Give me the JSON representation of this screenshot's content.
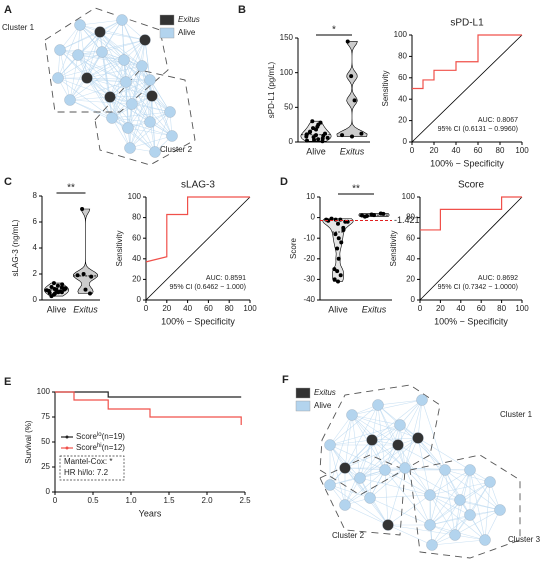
{
  "panel_labels": [
    "A",
    "B",
    "C",
    "D",
    "E",
    "F"
  ],
  "diagrams": [
    {
      "legend": [
        {
          "label": "Exitus",
          "color": "#333333"
        },
        {
          "label": "Alive",
          "color": "#b3d4ee"
        }
      ],
      "clusters": [
        "Cluster 1",
        "Cluster 2"
      ]
    },
    {
      "legend": [
        {
          "label": "Exitus",
          "color": "#333333"
        },
        {
          "label": "Alive",
          "color": "#b3d4ee"
        }
      ],
      "clusters": [
        "Cluster 1",
        "Cluster 2",
        "Cluster 3"
      ]
    }
  ],
  "chart_data": [
    {
      "type": "violin",
      "ylabel": "sPD-L1 (pg/mL)",
      "categories": [
        "Alive",
        "Exitus"
      ],
      "significance": "*",
      "ylim": [
        0,
        150
      ],
      "yticks": [
        0,
        50,
        100,
        150
      ],
      "groups": [
        [
          2,
          3,
          5,
          8,
          10,
          12,
          15,
          4,
          6,
          20,
          25,
          30,
          7,
          9,
          11,
          18,
          1,
          14,
          22,
          28
        ],
        [
          145,
          95,
          60,
          10,
          8,
          12
        ]
      ]
    },
    {
      "type": "roc",
      "title": "sPD-L1",
      "xlabel": "100% − Specificity",
      "ylabel": "Sensitivity",
      "color": "#f0504a",
      "annotations": [
        "AUC: 0.8067",
        "95% CI (0.6131 − 0.9960)"
      ],
      "xlim": [
        0,
        100
      ],
      "ylim": [
        0,
        100
      ],
      "xticks": [
        0,
        20,
        40,
        60,
        80,
        100
      ],
      "yticks": [
        0,
        20,
        40,
        60,
        80,
        100
      ],
      "x": [
        0,
        10,
        10,
        20,
        20,
        40,
        40,
        60,
        60,
        100
      ],
      "y": [
        50,
        50,
        58,
        58,
        67,
        67,
        75,
        75,
        100,
        100
      ]
    },
    {
      "type": "violin",
      "ylabel": "sLAG-3 (ng/mL)",
      "categories": [
        "Alive",
        "Exitus"
      ],
      "significance": "**",
      "ylim": [
        0,
        8
      ],
      "yticks": [
        0,
        2,
        4,
        6,
        8
      ],
      "groups": [
        [
          0.3,
          0.5,
          0.6,
          0.7,
          0.8,
          0.9,
          1.0,
          1.1,
          1.2,
          0.4,
          0.65,
          0.75,
          0.85,
          0.95,
          0.55,
          0.7,
          0.8,
          1.3,
          0.6,
          0.9
        ],
        [
          7.0,
          2.0,
          1.8,
          1.9,
          0.8,
          0.5
        ]
      ]
    },
    {
      "type": "roc",
      "title": "sLAG-3",
      "xlabel": "100% − Specificity",
      "ylabel": "Sensitivity",
      "color": "#f0504a",
      "annotations": [
        "AUC: 0.8591",
        "95% CI (0.6462 − 1.000)"
      ],
      "xlim": [
        0,
        100
      ],
      "ylim": [
        0,
        100
      ],
      "xticks": [
        0,
        20,
        40,
        60,
        80,
        100
      ],
      "yticks": [
        0,
        20,
        40,
        60,
        80,
        100
      ],
      "x": [
        0,
        20,
        20,
        40,
        40,
        100
      ],
      "y": [
        37,
        42,
        83,
        83,
        100,
        100
      ]
    },
    {
      "type": "violin",
      "ylabel": "Score",
      "categories": [
        "Alive",
        "Exitus"
      ],
      "significance": "**",
      "threshold": {
        "value": -1.421,
        "label": "-1.421"
      },
      "ylim": [
        -40,
        10
      ],
      "yticks": [
        -40,
        -30,
        -20,
        -10,
        0,
        10
      ],
      "groups": [
        [
          -1,
          -1,
          -2,
          -1.5,
          -3,
          -5,
          -8,
          -10,
          -12,
          -15,
          -20,
          -25,
          -26,
          -28,
          -30,
          -31,
          -2,
          -0.5,
          -1,
          -6
        ],
        [
          1,
          1.5,
          2,
          0.5,
          1.2,
          1.8,
          0.8
        ]
      ]
    },
    {
      "type": "roc",
      "title": "Score",
      "xlabel": "100% − Specificity",
      "ylabel": "Sensitivity",
      "color": "#f0504a",
      "annotations": [
        "AUC: 0.8692",
        "95% CI (0.7342 − 1.0000)"
      ],
      "xlim": [
        0,
        100
      ],
      "ylim": [
        0,
        100
      ],
      "xticks": [
        0,
        20,
        40,
        60,
        80,
        100
      ],
      "yticks": [
        0,
        20,
        40,
        60,
        80,
        100
      ],
      "x": [
        0,
        20,
        20,
        80,
        80,
        100
      ],
      "y": [
        68,
        68,
        88,
        88,
        100,
        100
      ]
    },
    {
      "type": "survival",
      "xlabel": "Years",
      "ylabel": "Survival (%)",
      "xlim": [
        0,
        2.5
      ],
      "ylim": [
        0,
        100
      ],
      "xticks": [
        0,
        0.5,
        {
          "value": 1,
          "label": "1.0"
        },
        1.5,
        {
          "value": 2,
          "label": "2.0"
        },
        2.5
      ],
      "yticks": [
        0,
        25,
        50,
        75,
        100
      ],
      "annotations": [
        "Mantel-Cox: *",
        "HR hi/lo: 7.2"
      ],
      "series": [
        {
          "label": {
            "base": "Score",
            "sup": "lo",
            "rest": "(n=19)"
          },
          "color": "#222222",
          "x": [
            0,
            0.7,
            0.7,
            2.45
          ],
          "y": [
            100,
            100,
            95,
            95
          ]
        },
        {
          "label": {
            "base": "Score",
            "sup": "hi",
            "rest": "(n=12)"
          },
          "color": "#f0504a",
          "x": [
            0,
            0.25,
            0.25,
            0.7,
            0.7,
            1.25,
            1.25,
            2.45,
            2.45
          ],
          "y": [
            100,
            100,
            92,
            92,
            83,
            83,
            75,
            75,
            67
          ]
        }
      ]
    }
  ]
}
